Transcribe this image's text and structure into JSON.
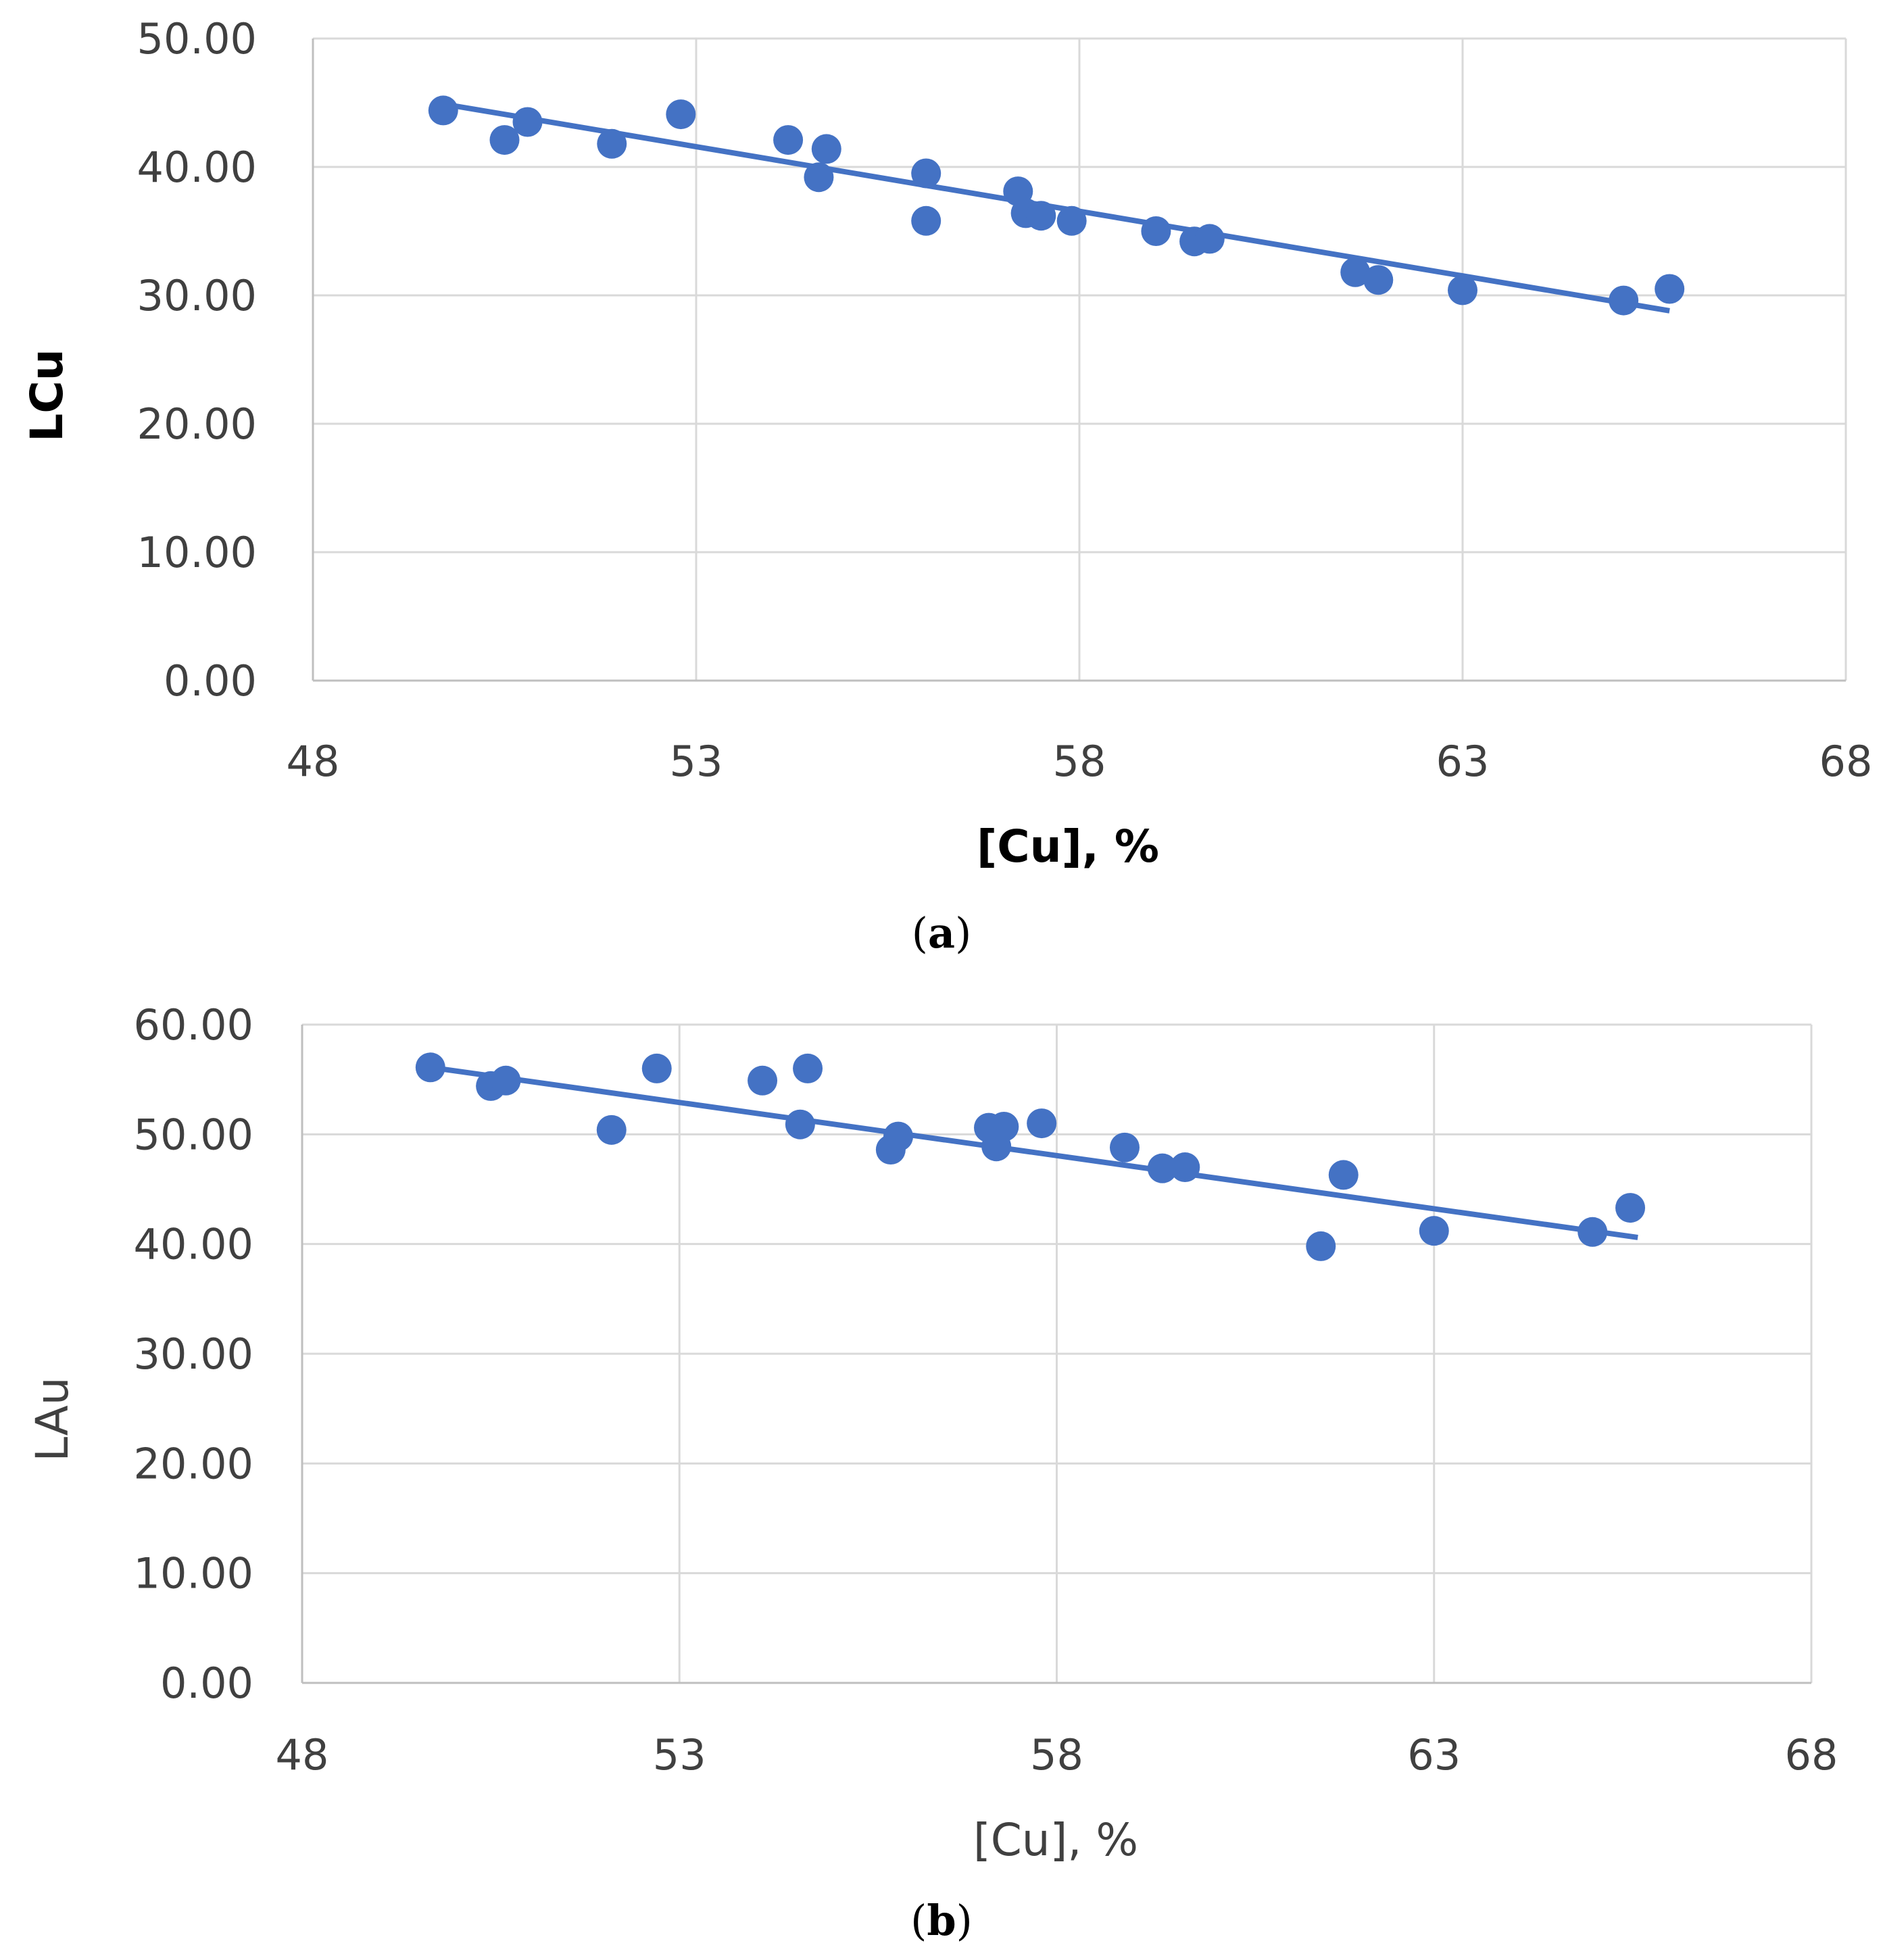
{
  "accent_color": "#4472c4",
  "chart_data": [
    {
      "type": "scatter",
      "title": "",
      "caption_letter": "a",
      "xlabel": "[Cu], %",
      "ylabel": "LCu",
      "xlim": [
        48,
        68
      ],
      "ylim": [
        0,
        50
      ],
      "x_ticks": [
        "48",
        "53",
        "58",
        "63",
        "68"
      ],
      "y_ticks": [
        "0.00",
        "10.00",
        "20.00",
        "30.00",
        "40.00",
        "50.00"
      ],
      "grid": true,
      "series": [
        {
          "name": "LCu",
          "points": [
            [
              49.7,
              44.4
            ],
            [
              50.5,
              42.1
            ],
            [
              50.8,
              43.5
            ],
            [
              51.9,
              41.8
            ],
            [
              52.8,
              44.1
            ],
            [
              54.2,
              42.1
            ],
            [
              54.6,
              39.2
            ],
            [
              54.7,
              41.4
            ],
            [
              56.0,
              39.5
            ],
            [
              56.0,
              35.8
            ],
            [
              57.2,
              38.1
            ],
            [
              57.3,
              36.4
            ],
            [
              57.5,
              36.2
            ],
            [
              57.9,
              35.8
            ],
            [
              59.0,
              35.0
            ],
            [
              59.5,
              34.2
            ],
            [
              59.7,
              34.4
            ],
            [
              61.6,
              31.8
            ],
            [
              61.9,
              31.2
            ],
            [
              63.0,
              30.4
            ],
            [
              65.1,
              29.6
            ],
            [
              65.7,
              30.5
            ]
          ]
        }
      ],
      "trendline": {
        "x": [
          49.7,
          65.7
        ],
        "y": [
          44.9,
          28.8
        ]
      }
    },
    {
      "type": "scatter",
      "title": "",
      "caption_letter": "b",
      "xlabel": "[Cu], %",
      "ylabel": "LAu",
      "xlim": [
        48,
        68
      ],
      "ylim": [
        0,
        60
      ],
      "x_ticks": [
        "48",
        "53",
        "58",
        "63",
        "68"
      ],
      "y_ticks": [
        "0.00",
        "10.00",
        "20.00",
        "30.00",
        "40.00",
        "50.00",
        "60.00"
      ],
      "grid": true,
      "series": [
        {
          "name": "LAu",
          "points": [
            [
              49.7,
              56.1
            ],
            [
              50.5,
              54.4
            ],
            [
              50.7,
              54.9
            ],
            [
              52.1,
              50.4
            ],
            [
              52.7,
              56.0
            ],
            [
              54.1,
              54.9
            ],
            [
              54.6,
              50.9
            ],
            [
              54.7,
              56.0
            ],
            [
              55.8,
              48.6
            ],
            [
              55.9,
              49.8
            ],
            [
              57.1,
              50.6
            ],
            [
              57.2,
              48.9
            ],
            [
              57.3,
              50.7
            ],
            [
              57.8,
              51.0
            ],
            [
              58.9,
              48.8
            ],
            [
              59.4,
              46.9
            ],
            [
              59.7,
              47.0
            ],
            [
              61.5,
              39.8
            ],
            [
              61.8,
              46.3
            ],
            [
              63.0,
              41.2
            ],
            [
              65.1,
              41.1
            ],
            [
              65.6,
              43.3
            ]
          ]
        }
      ],
      "trendline": {
        "x": [
          49.7,
          65.7
        ],
        "y": [
          56.1,
          40.6
        ]
      }
    }
  ]
}
